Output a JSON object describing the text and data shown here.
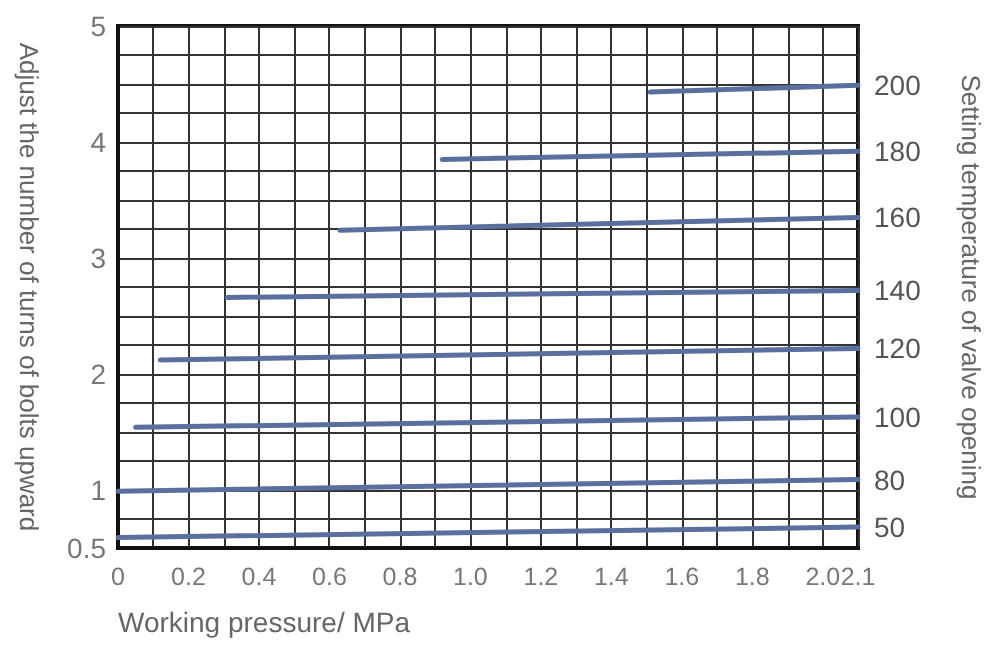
{
  "chart_data": {
    "type": "line",
    "xlabel": "Working pressure/ MPa",
    "ylabel": "Adjust the number of turns of bolts upward",
    "y2label": "Setting temperature of valve opening",
    "xlim": [
      0,
      2.1
    ],
    "xticks": [
      0,
      {
        "value": 0.1,
        "label": null
      },
      0.2,
      {
        "value": 0.3,
        "label": null
      },
      0.4,
      {
        "value": 0.5,
        "label": null
      },
      0.6,
      {
        "value": 0.7,
        "label": null
      },
      0.8,
      {
        "value": 0.9,
        "label": null
      },
      {
        "value": 1,
        "label": "1.0"
      },
      {
        "value": 1.1,
        "label": null
      },
      1.2,
      {
        "value": 1.3,
        "label": null
      },
      1.4,
      {
        "value": 1.5,
        "label": null
      },
      1.6,
      {
        "value": 1.7,
        "label": null
      },
      1.8,
      {
        "value": 1.9,
        "label": null
      },
      {
        "value": 2,
        "label": "2.0"
      },
      2.1
    ],
    "ylim": [
      0.5,
      5
    ],
    "yticks": [
      0.5,
      {
        "value": 0.75,
        "label": null
      },
      1,
      {
        "value": 1.25,
        "label": null
      },
      {
        "value": 1.5,
        "label": null
      },
      {
        "value": 1.75,
        "label": null
      },
      2,
      {
        "value": 2.25,
        "label": null
      },
      {
        "value": 2.5,
        "label": null
      },
      {
        "value": 2.75,
        "label": null
      },
      3,
      {
        "value": 3.25,
        "label": null
      },
      {
        "value": 3.5,
        "label": null
      },
      {
        "value": 3.75,
        "label": null
      },
      4,
      {
        "value": 4.25,
        "label": null
      },
      {
        "value": 4.5,
        "label": null
      },
      {
        "value": 4.75,
        "label": null
      },
      5
    ],
    "grid": true,
    "marker": "none",
    "line_style": "solid",
    "series": [
      {
        "name": "200",
        "color": "#5a6f9e",
        "x": [
          1.51,
          2.1
        ],
        "values": [
          4.43,
          4.49
        ]
      },
      {
        "name": "180",
        "color": "#5a6f9e",
        "x": [
          0.92,
          2.1
        ],
        "values": [
          3.85,
          3.92
        ]
      },
      {
        "name": "160",
        "color": "#5a6f9e",
        "x": [
          0.63,
          2.1
        ],
        "values": [
          3.24,
          3.35
        ]
      },
      {
        "name": "140",
        "color": "#5a6f9e",
        "x": [
          0.31,
          2.1
        ],
        "values": [
          2.66,
          2.72
        ]
      },
      {
        "name": "120",
        "color": "#5a6f9e",
        "x": [
          0.12,
          2.1
        ],
        "values": [
          2.12,
          2.22
        ]
      },
      {
        "name": "100",
        "color": "#5a6f9e",
        "x": [
          0.05,
          2.1
        ],
        "values": [
          1.54,
          1.63
        ]
      },
      {
        "name": "80",
        "color": "#5a6f9e",
        "x": [
          0,
          2.1
        ],
        "values": [
          0.99,
          1.09
        ]
      },
      {
        "name": "50",
        "color": "#5a6f9e",
        "x": [
          0,
          2.1
        ],
        "values": [
          0.59,
          0.68
        ]
      }
    ]
  }
}
